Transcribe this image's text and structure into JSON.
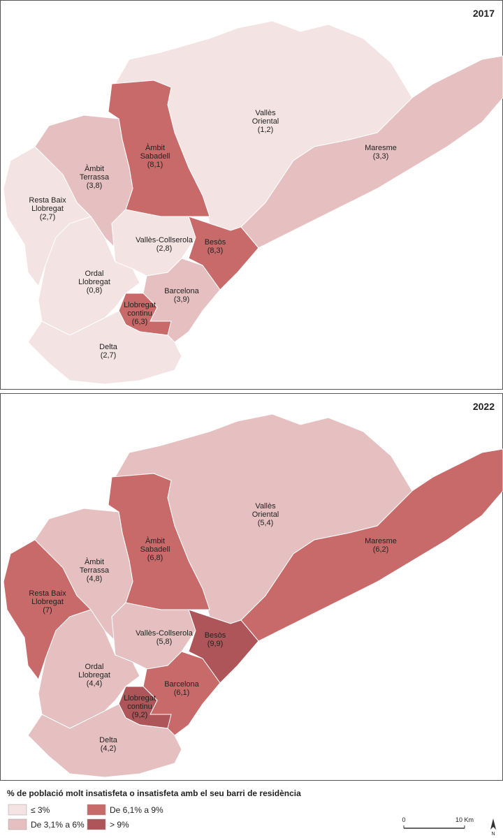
{
  "maps": [
    {
      "year": "2017",
      "regions": [
        {
          "name": [
            "Vallès",
            "Oriental"
          ],
          "value": 1.2,
          "value_label": "(1,2)",
          "color": "#f4e3e3"
        },
        {
          "name": [
            "Maresme"
          ],
          "value": 3.3,
          "value_label": "(3,3)",
          "color": "#e6c0c0"
        },
        {
          "name": [
            "Àmbit",
            "Sabadell"
          ],
          "value": 8.1,
          "value_label": "(8,1)",
          "color": "#c96a6a"
        },
        {
          "name": [
            "Àmbit",
            "Terrassa"
          ],
          "value": 3.8,
          "value_label": "(3,8)",
          "color": "#e6c0c0"
        },
        {
          "name": [
            "Resta Baix",
            "Llobregat"
          ],
          "value": 2.7,
          "value_label": "(2,7)",
          "color": "#f4e3e3"
        },
        {
          "name": [
            "Vallès-Collserola"
          ],
          "value": 2.8,
          "value_label": "(2,8)",
          "color": "#f4e3e3"
        },
        {
          "name": [
            "Besòs"
          ],
          "value": 8.3,
          "value_label": "(8,3)",
          "color": "#c96a6a"
        },
        {
          "name": [
            "Barcelona"
          ],
          "value": 3.9,
          "value_label": "(3,9)",
          "color": "#e6c0c0"
        },
        {
          "name": [
            "Ordal",
            "Llobregat"
          ],
          "value": 0.8,
          "value_label": "(0,8)",
          "color": "#f4e3e3"
        },
        {
          "name": [
            "Llobregat",
            "continu"
          ],
          "value": 6.3,
          "value_label": "(6,3)",
          "color": "#c96a6a"
        },
        {
          "name": [
            "Delta"
          ],
          "value": 2.7,
          "value_label": "(2,7)",
          "color": "#f4e3e3"
        }
      ]
    },
    {
      "year": "2022",
      "regions": [
        {
          "name": [
            "Vallès",
            "Oriental"
          ],
          "value": 5.4,
          "value_label": "(5,4)",
          "color": "#e6c0c0"
        },
        {
          "name": [
            "Maresme"
          ],
          "value": 6.2,
          "value_label": "(6,2)",
          "color": "#c96a6a"
        },
        {
          "name": [
            "Àmbit",
            "Sabadell"
          ],
          "value": 6.8,
          "value_label": "(6,8)",
          "color": "#c96a6a"
        },
        {
          "name": [
            "Àmbit",
            "Terrassa"
          ],
          "value": 4.8,
          "value_label": "(4,8)",
          "color": "#e6c0c0"
        },
        {
          "name": [
            "Resta Baix",
            "Llobregat"
          ],
          "value": 7,
          "value_label": "(7)",
          "color": "#c96a6a"
        },
        {
          "name": [
            "Vallès-Collserola"
          ],
          "value": 5.8,
          "value_label": "(5,8)",
          "color": "#e6c0c0"
        },
        {
          "name": [
            "Besòs"
          ],
          "value": 9.9,
          "value_label": "(9,9)",
          "color": "#ad5558"
        },
        {
          "name": [
            "Barcelona"
          ],
          "value": 6.1,
          "value_label": "(6,1)",
          "color": "#c96a6a"
        },
        {
          "name": [
            "Ordal",
            "Llobregat"
          ],
          "value": 4.4,
          "value_label": "(4,4)",
          "color": "#e6c0c0"
        },
        {
          "name": [
            "Llobregat",
            "continu"
          ],
          "value": 9.2,
          "value_label": "(9,2)",
          "color": "#ad5558"
        },
        {
          "name": [
            "Delta"
          ],
          "value": 4.2,
          "value_label": "(4,2)",
          "color": "#e6c0c0"
        }
      ]
    }
  ],
  "legend": {
    "title": "% de població molt insatisfeta o insatisfeta amb el seu barri de residència",
    "items": [
      {
        "label": "≤ 3%",
        "color": "#f4e3e3"
      },
      {
        "label": "De 3,1% a 6%",
        "color": "#e6c0c0"
      },
      {
        "label": "De 6,1% a 9%",
        "color": "#c96a6a"
      },
      {
        "label": "> 9%",
        "color": "#ad5558"
      }
    ]
  },
  "scale": {
    "start": "0",
    "end": "10 Km"
  },
  "north": "N"
}
